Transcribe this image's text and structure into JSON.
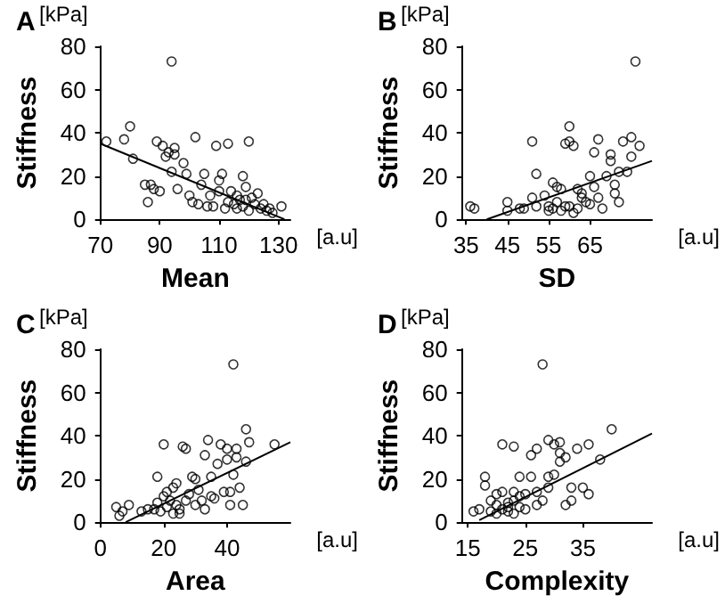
{
  "chart_data": [
    {
      "type": "scatter",
      "title": "A",
      "xlabel": "Mean",
      "ylabel": "Stiffness",
      "annotations": [
        "[kPa]",
        "[a.u]"
      ],
      "xlim": [
        70,
        134
      ],
      "xticks": [
        70,
        90,
        110,
        130
      ],
      "ylim": [
        0,
        80
      ],
      "yticks": [
        0,
        20,
        40,
        60,
        80
      ],
      "grid": false,
      "series": [
        {
          "marker": "circle",
          "color": "#000000",
          "x": [
            72,
            78,
            80,
            81,
            85,
            86,
            87,
            88,
            89,
            90,
            91,
            92,
            93,
            94,
            94,
            95,
            95,
            96,
            98,
            99,
            100,
            101,
            102,
            103,
            104,
            105,
            106,
            107,
            108,
            109,
            110,
            110,
            111,
            112,
            113,
            114,
            115,
            116,
            117,
            118,
            118,
            119,
            120,
            120,
            121,
            122,
            123,
            124,
            125,
            126,
            127,
            128,
            131,
            113,
            116,
            119
          ],
          "values": [
            36,
            37,
            43,
            28,
            16,
            8,
            16,
            14,
            36,
            13,
            34,
            29,
            31,
            73,
            22,
            33,
            30,
            14,
            26,
            21,
            11,
            8,
            38,
            7,
            16,
            21,
            6,
            11,
            6,
            34,
            13,
            18,
            21,
            5,
            35,
            13,
            7,
            11,
            9,
            20,
            6,
            15,
            36,
            4,
            10,
            7,
            12,
            5,
            7,
            4,
            5,
            3,
            6,
            8,
            5,
            9
          ]
        },
        {
          "type": "line",
          "marker": "none",
          "color": "#000000",
          "x": [
            70,
            132
          ],
          "values": [
            35,
            0
          ]
        }
      ]
    },
    {
      "type": "scatter",
      "title": "B",
      "xlabel": "SD",
      "ylabel": "Stiffness",
      "annotations": [
        "[kPa]",
        "[a.u]"
      ],
      "xlim": [
        34,
        80
      ],
      "xticks": [
        35,
        45,
        55,
        65
      ],
      "ylim": [
        0,
        80
      ],
      "yticks": [
        0,
        20,
        40,
        60,
        80
      ],
      "grid": false,
      "series": [
        {
          "marker": "circle",
          "color": "#000000",
          "x": [
            36,
            37,
            45,
            45,
            48,
            49,
            51,
            51,
            52,
            52,
            54,
            55,
            56,
            56,
            57,
            57,
            58,
            58,
            59,
            59,
            60,
            60,
            60,
            61,
            61,
            62,
            63,
            63,
            64,
            65,
            65,
            66,
            66,
            67,
            67,
            68,
            69,
            70,
            70,
            71,
            71,
            72,
            72,
            73,
            74,
            75,
            75,
            76,
            77,
            62,
            55
          ],
          "values": [
            6,
            5,
            8,
            4,
            5,
            5,
            36,
            10,
            21,
            6,
            11,
            6,
            5,
            17,
            15,
            8,
            4,
            14,
            6,
            35,
            43,
            36,
            6,
            34,
            3,
            14,
            10,
            12,
            8,
            7,
            20,
            31,
            15,
            37,
            10,
            5,
            20,
            27,
            30,
            16,
            12,
            8,
            22,
            36,
            22,
            29,
            38,
            73,
            34,
            5,
            4
          ]
        },
        {
          "type": "line",
          "marker": "none",
          "color": "#000000",
          "x": [
            40,
            80
          ],
          "values": [
            0,
            27
          ]
        }
      ]
    },
    {
      "type": "scatter",
      "title": "C",
      "xlabel": "Area",
      "ylabel": "Stiffness",
      "annotations": [
        "[kPa]",
        "[a.u]"
      ],
      "xlim": [
        0,
        60
      ],
      "xticks": [
        0,
        20,
        40
      ],
      "ylim": [
        0,
        80
      ],
      "yticks": [
        0,
        20,
        40,
        60,
        80
      ],
      "grid": false,
      "series": [
        {
          "marker": "circle",
          "color": "#000000",
          "x": [
            5,
            6,
            7,
            9,
            13,
            15,
            17,
            18,
            18,
            19,
            20,
            20,
            21,
            22,
            23,
            23,
            24,
            24,
            25,
            26,
            27,
            27,
            28,
            29,
            30,
            30,
            31,
            32,
            33,
            33,
            34,
            35,
            35,
            36,
            37,
            38,
            39,
            40,
            40,
            41,
            41,
            42,
            42,
            43,
            43,
            44,
            45,
            46,
            46,
            47,
            55,
            25,
            21
          ],
          "values": [
            7,
            3,
            5,
            8,
            5,
            6,
            6,
            21,
            9,
            5,
            36,
            12,
            14,
            10,
            16,
            4,
            8,
            18,
            6,
            35,
            34,
            10,
            13,
            21,
            20,
            8,
            15,
            10,
            6,
            31,
            38,
            21,
            12,
            11,
            27,
            36,
            14,
            34,
            29,
            8,
            14,
            73,
            22,
            34,
            30,
            16,
            8,
            28,
            43,
            37,
            36,
            4,
            7
          ]
        },
        {
          "type": "line",
          "marker": "none",
          "color": "#000000",
          "x": [
            8,
            60
          ],
          "values": [
            0,
            37
          ]
        }
      ]
    },
    {
      "type": "scatter",
      "title": "D",
      "xlabel": "Complexity",
      "ylabel": "Stiffness",
      "annotations": [
        "[kPa]",
        "[a.u]"
      ],
      "xlim": [
        14,
        47
      ],
      "xticks": [
        15,
        25,
        35
      ],
      "ylim": [
        0,
        80
      ],
      "yticks": [
        0,
        20,
        40,
        60,
        80
      ],
      "grid": false,
      "series": [
        {
          "marker": "circle",
          "color": "#000000",
          "x": [
            16,
            17,
            18,
            18,
            19,
            19,
            20,
            20,
            21,
            21,
            21,
            22,
            22,
            23,
            23,
            23,
            23,
            24,
            24,
            24,
            25,
            25,
            26,
            26,
            27,
            27,
            27,
            28,
            28,
            29,
            29,
            29,
            30,
            30,
            31,
            31,
            31,
            32,
            32,
            33,
            33,
            34,
            35,
            36,
            36,
            38,
            40,
            22,
            20
          ],
          "values": [
            5,
            6,
            21,
            17,
            5,
            10,
            8,
            13,
            36,
            14,
            6,
            9,
            5,
            10,
            35,
            14,
            4,
            21,
            7,
            12,
            6,
            13,
            31,
            21,
            34,
            8,
            14,
            73,
            10,
            38,
            16,
            21,
            22,
            36,
            32,
            28,
            37,
            8,
            30,
            16,
            10,
            34,
            16,
            36,
            13,
            29,
            43,
            7,
            4
          ]
        },
        {
          "type": "line",
          "marker": "none",
          "color": "#000000",
          "x": [
            17,
            47
          ],
          "values": [
            1,
            41
          ]
        }
      ]
    }
  ]
}
